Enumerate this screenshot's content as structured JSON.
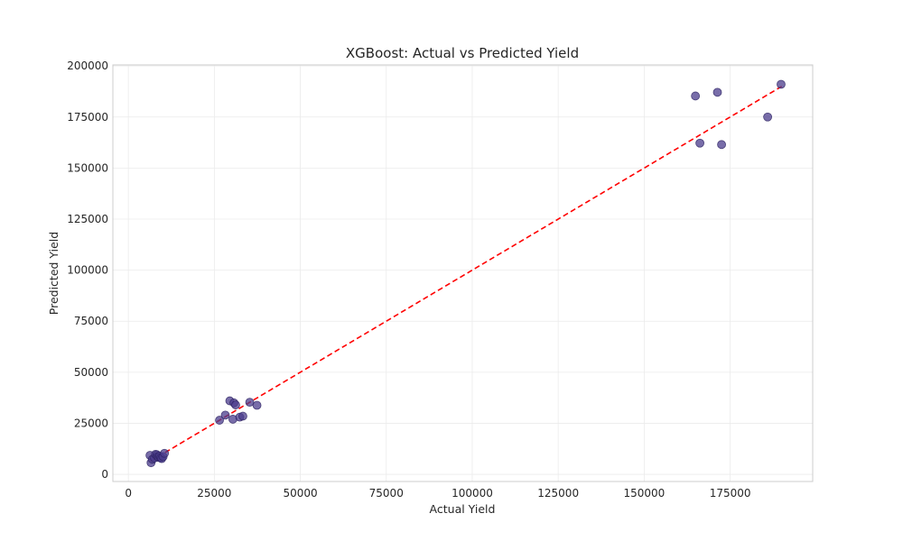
{
  "chart_data": {
    "type": "scatter",
    "title": "XGBoost: Actual vs Predicted Yield",
    "xlabel": "Actual Yield",
    "ylabel": "Predicted Yield",
    "xlim": [
      -4500,
      199000
    ],
    "ylim": [
      -3500,
      200500
    ],
    "xticks": [
      0,
      25000,
      50000,
      75000,
      100000,
      125000,
      150000,
      175000
    ],
    "yticks": [
      0,
      25000,
      50000,
      75000,
      100000,
      125000,
      150000,
      175000,
      200000
    ],
    "grid": true,
    "point_color": "#4b3c8c",
    "point_alpha": 0.75,
    "reference_line": {
      "style": "dashed",
      "color": "#ff0000",
      "from": [
        6400,
        6400
      ],
      "to": [
        190000,
        190000
      ]
    },
    "points": [
      {
        "x": 6300,
        "y": 9300
      },
      {
        "x": 6600,
        "y": 5700
      },
      {
        "x": 7000,
        "y": 7400
      },
      {
        "x": 7600,
        "y": 8000
      },
      {
        "x": 7900,
        "y": 9800
      },
      {
        "x": 8300,
        "y": 9600
      },
      {
        "x": 8500,
        "y": 8700
      },
      {
        "x": 8800,
        "y": 8300
      },
      {
        "x": 9100,
        "y": 8900
      },
      {
        "x": 9400,
        "y": 8100
      },
      {
        "x": 9700,
        "y": 7700
      },
      {
        "x": 10100,
        "y": 8700
      },
      {
        "x": 10500,
        "y": 10300
      },
      {
        "x": 26500,
        "y": 26500
      },
      {
        "x": 28200,
        "y": 29000
      },
      {
        "x": 29500,
        "y": 36000
      },
      {
        "x": 30400,
        "y": 27000
      },
      {
        "x": 30700,
        "y": 35000
      },
      {
        "x": 31200,
        "y": 34000
      },
      {
        "x": 32400,
        "y": 28000
      },
      {
        "x": 33300,
        "y": 28500
      },
      {
        "x": 35300,
        "y": 35300
      },
      {
        "x": 37400,
        "y": 33800
      },
      {
        "x": 164900,
        "y": 185300
      },
      {
        "x": 166200,
        "y": 162200
      },
      {
        "x": 171300,
        "y": 187100
      },
      {
        "x": 172500,
        "y": 161500
      },
      {
        "x": 185900,
        "y": 175000
      },
      {
        "x": 189800,
        "y": 191000
      }
    ]
  }
}
